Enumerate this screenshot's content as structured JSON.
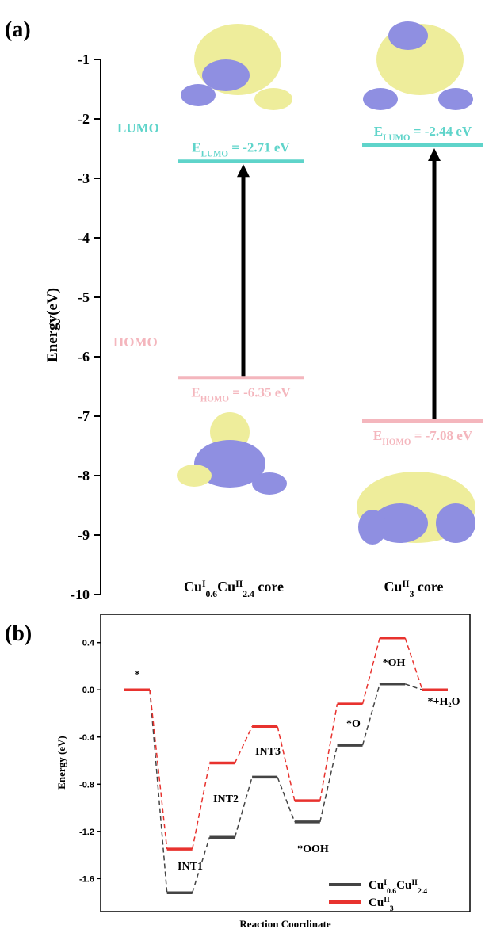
{
  "chart_data": [
    {
      "type": "energy-level",
      "panel_label": "(a)",
      "ylabel": "Energy(eV)",
      "ylim": [
        -10,
        -1
      ],
      "yticks": [
        -1,
        -2,
        -3,
        -4,
        -5,
        -6,
        -7,
        -8,
        -9,
        -10
      ],
      "categories": [
        [
          "Cu",
          "I",
          "0.6",
          "Cu",
          "II",
          "2.4",
          " core"
        ],
        [
          "Cu",
          "II",
          "3",
          " core"
        ]
      ],
      "series": [
        {
          "name": "LUMO",
          "symbol": "E",
          "subscript": "LUMO",
          "color": "#5fd4ca",
          "values": [
            -2.71,
            -2.44
          ],
          "value_labels": [
            " = -2.71 eV",
            " = -2.44 eV"
          ]
        },
        {
          "name": "HOMO",
          "symbol": "E",
          "subscript": "HOMO",
          "color": "#f4b6bd",
          "values": [
            -6.35,
            -7.08
          ],
          "value_labels": [
            " = -6.35 eV",
            " = -7.08 eV"
          ]
        }
      ]
    },
    {
      "type": "step-line",
      "panel_label": "(b)",
      "ylabel": "Energy (eV)",
      "xlabel": "Reaction Coordinate",
      "ylim": [
        -1.88,
        0.64
      ],
      "yticks": [
        {
          "value": 0.4,
          "label": "0.4"
        },
        {
          "value": 0,
          "label": "0.0"
        },
        {
          "value": -0.4,
          "label": "-0.4"
        },
        {
          "value": -0.8,
          "label": "-0.8"
        },
        {
          "value": -1.2,
          "label": "-1.2"
        },
        {
          "value": -1.6,
          "label": "-1.6"
        }
      ],
      "categories": [
        "*",
        "INT1",
        "INT2",
        "INT3",
        "*OOH",
        "*O",
        "*OH",
        "*+H₂O"
      ],
      "series": [
        {
          "name": [
            "Cu",
            "I",
            "0.6",
            "Cu",
            "II",
            "2.4"
          ],
          "color": "#444444",
          "values": [
            0,
            -1.72,
            -1.25,
            -0.74,
            -1.12,
            -0.47,
            0.05,
            0
          ]
        },
        {
          "name": [
            "Cu",
            "II",
            "3"
          ],
          "color": "#e8322e",
          "values": [
            0,
            -1.35,
            -0.62,
            -0.31,
            -0.94,
            -0.12,
            0.44,
            0
          ]
        }
      ]
    }
  ]
}
